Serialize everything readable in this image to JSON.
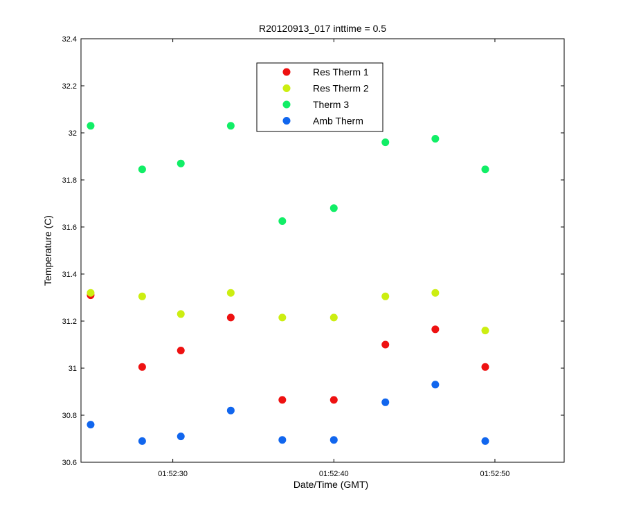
{
  "chart_data": {
    "type": "scatter",
    "title": "R20120913_017 inttime = 0.5",
    "xlabel": "Date/Time (GMT)",
    "ylabel": "Temperature (C)",
    "x_axis_kind": "time",
    "xlim": [
      "01:52:24.3",
      "01:52:54.3"
    ],
    "ylim": [
      30.6,
      32.4
    ],
    "x_ticks": [
      "01:52:30",
      "01:52:40",
      "01:52:50"
    ],
    "y_ticks": [
      "30.6",
      "30.8",
      "31",
      "31.2",
      "31.4",
      "31.6",
      "31.8",
      "32",
      "32.2",
      "32.4"
    ],
    "grid": false,
    "legend_position": "top-center",
    "x": [
      "01:52:24.9",
      "01:52:28.1",
      "01:52:30.5",
      "01:52:33.6",
      "01:52:36.8",
      "01:52:40.0",
      "01:52:43.2",
      "01:52:46.3",
      "01:52:49.4"
    ],
    "series": [
      {
        "name": "Res Therm 1",
        "color": "#ee1111",
        "values": [
          31.31,
          31.005,
          31.075,
          31.215,
          30.865,
          30.865,
          31.1,
          31.165,
          31.005
        ]
      },
      {
        "name": "Res Therm 2",
        "color": "#ccee11",
        "values": [
          31.32,
          31.305,
          31.23,
          31.32,
          31.215,
          31.215,
          31.305,
          31.32,
          31.16
        ]
      },
      {
        "name": "Therm 3",
        "color": "#11ee66",
        "values": [
          32.03,
          31.845,
          31.87,
          32.03,
          31.625,
          31.68,
          31.96,
          31.975,
          31.845
        ]
      },
      {
        "name": "Amb Therm",
        "color": "#1166ee",
        "values": [
          30.76,
          30.69,
          30.71,
          30.82,
          30.695,
          30.695,
          30.855,
          30.93,
          30.69
        ]
      }
    ]
  }
}
